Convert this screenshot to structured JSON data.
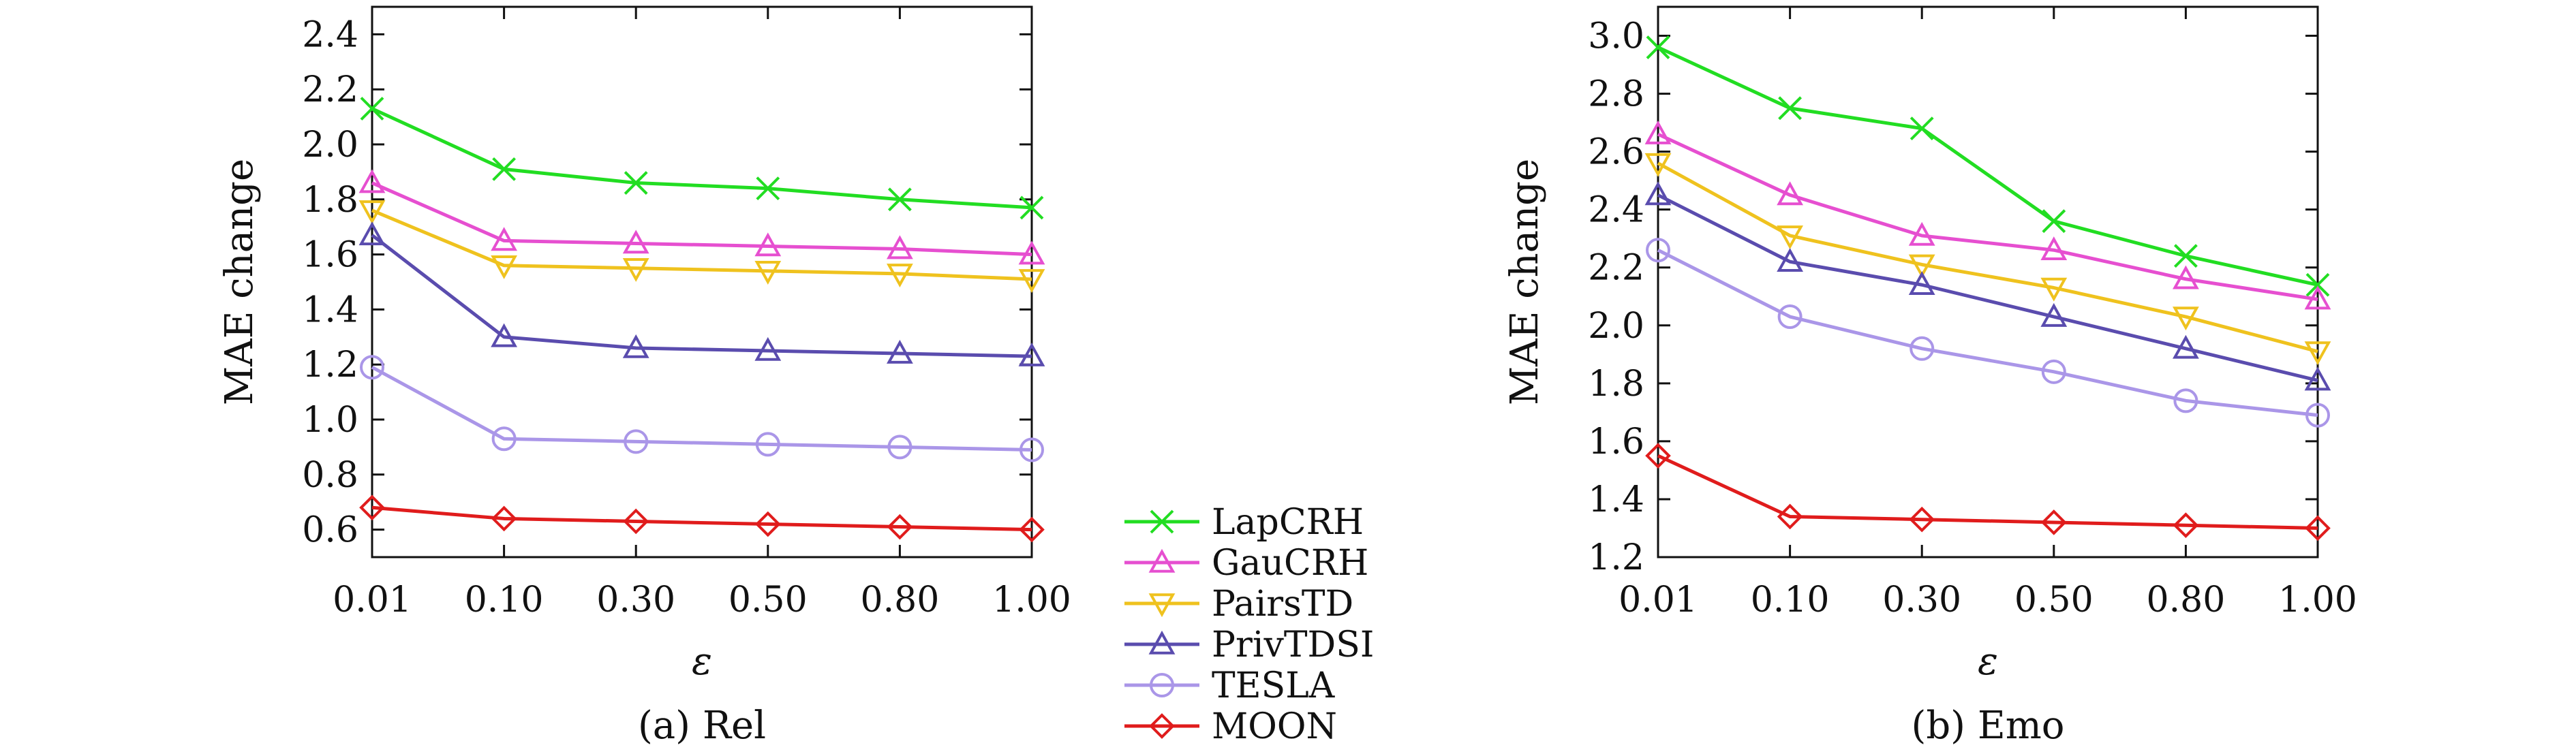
{
  "legend": {
    "entries": [
      {
        "name": "LapCRH",
        "color": "#22dd22",
        "marker": "x"
      },
      {
        "name": "GauCRH",
        "color": "#e64fd0",
        "marker": "triangle-up"
      },
      {
        "name": "PairsTD",
        "color": "#efc21e",
        "marker": "triangle-down"
      },
      {
        "name": "PrivTDSI",
        "color": "#5a4cae",
        "marker": "triangle-up"
      },
      {
        "name": "TESLA",
        "color": "#aa96e8",
        "marker": "circle"
      },
      {
        "name": "MOON",
        "color": "#e01c1c",
        "marker": "diamond"
      }
    ]
  },
  "chart_data": [
    {
      "type": "line",
      "caption": "(a) Rel",
      "xlabel": "ε",
      "ylabel": "MAE change",
      "categories": [
        "0.01",
        "0.10",
        "0.30",
        "0.50",
        "0.80",
        "1.00"
      ],
      "ylim": [
        0.5,
        2.5
      ],
      "yticks": [
        "0.6",
        "0.8",
        "1.0",
        "1.2",
        "1.4",
        "1.6",
        "1.8",
        "2.0",
        "2.2",
        "2.4"
      ],
      "grid": false,
      "series": [
        {
          "name": "LapCRH",
          "values": [
            2.13,
            1.91,
            1.86,
            1.84,
            1.8,
            1.77
          ]
        },
        {
          "name": "GauCRH",
          "values": [
            1.86,
            1.65,
            1.64,
            1.63,
            1.62,
            1.6
          ]
        },
        {
          "name": "PairsTD",
          "values": [
            1.76,
            1.56,
            1.55,
            1.54,
            1.53,
            1.51
          ]
        },
        {
          "name": "PrivTDSI",
          "values": [
            1.67,
            1.3,
            1.26,
            1.25,
            1.24,
            1.23
          ]
        },
        {
          "name": "TESLA",
          "values": [
            1.19,
            0.93,
            0.92,
            0.91,
            0.9,
            0.89
          ]
        },
        {
          "name": "MOON",
          "values": [
            0.68,
            0.64,
            0.63,
            0.62,
            0.61,
            0.6
          ]
        }
      ]
    },
    {
      "type": "line",
      "caption": "(b) Emo",
      "xlabel": "ε",
      "ylabel": "MAE change",
      "categories": [
        "0.01",
        "0.10",
        "0.30",
        "0.50",
        "0.80",
        "1.00"
      ],
      "ylim": [
        1.2,
        3.1
      ],
      "yticks": [
        "1.2",
        "1.4",
        "1.6",
        "1.8",
        "2.0",
        "2.2",
        "2.4",
        "2.6",
        "2.8",
        "3.0"
      ],
      "grid": false,
      "series": [
        {
          "name": "LapCRH",
          "values": [
            2.96,
            2.75,
            2.68,
            2.36,
            2.24,
            2.14
          ]
        },
        {
          "name": "GauCRH",
          "values": [
            2.66,
            2.45,
            2.31,
            2.26,
            2.16,
            2.09
          ]
        },
        {
          "name": "PairsTD",
          "values": [
            2.56,
            2.31,
            2.21,
            2.13,
            2.03,
            1.91
          ]
        },
        {
          "name": "PrivTDSI",
          "values": [
            2.45,
            2.22,
            2.14,
            2.03,
            1.92,
            1.81
          ]
        },
        {
          "name": "TESLA",
          "values": [
            2.26,
            2.03,
            1.92,
            1.84,
            1.74,
            1.69
          ]
        },
        {
          "name": "MOON",
          "values": [
            1.55,
            1.34,
            1.33,
            1.32,
            1.31,
            1.3
          ]
        }
      ]
    }
  ]
}
